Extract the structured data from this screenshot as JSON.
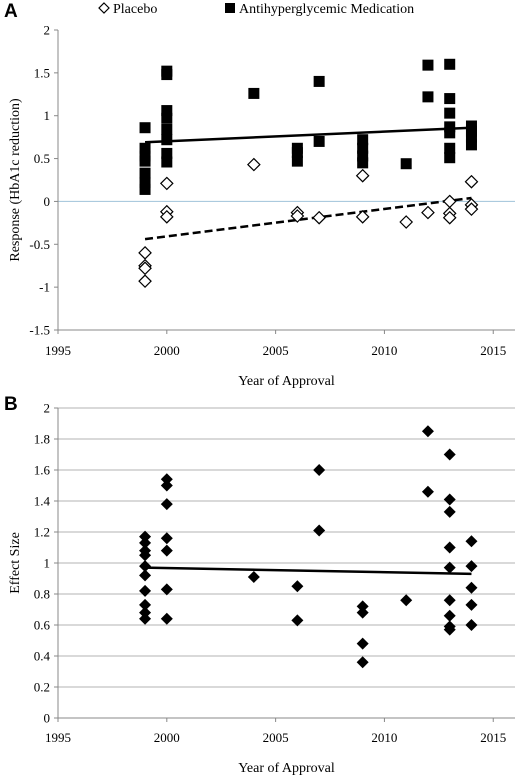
{
  "chart_data": [
    {
      "panel": "A",
      "type": "scatter",
      "xlabel": "Year of Approval",
      "ylabel": "Response (HbA1c reduction)",
      "xlim": [
        1995,
        2016
      ],
      "ylim": [
        -1.5,
        2
      ],
      "xticks": [
        1995,
        2000,
        2005,
        2010,
        2015
      ],
      "yticks": [
        -1.5,
        -1,
        -0.5,
        0,
        0.5,
        1,
        1.5,
        2
      ],
      "grid": "none",
      "legend": "top",
      "colors": {
        "medication": "#000000",
        "placebo": "#000000",
        "zero_line": "#9fc3da"
      },
      "series": [
        {
          "name": "Placebo",
          "marker": "diamond-open",
          "points": [
            [
              1999,
              -0.6
            ],
            [
              1999,
              -0.75
            ],
            [
              1999,
              -0.78
            ],
            [
              1999,
              -0.93
            ],
            [
              2000,
              0.21
            ],
            [
              2000,
              -0.12
            ],
            [
              2000,
              -0.18
            ],
            [
              2004,
              0.43
            ],
            [
              2006,
              -0.13
            ],
            [
              2006,
              -0.17
            ],
            [
              2007,
              -0.19
            ],
            [
              2009,
              0.3
            ],
            [
              2009,
              -0.18
            ],
            [
              2011,
              -0.24
            ],
            [
              2012,
              -0.13
            ],
            [
              2013,
              0.0
            ],
            [
              2013,
              -0.14
            ],
            [
              2013,
              -0.19
            ],
            [
              2014,
              0.23
            ],
            [
              2014,
              -0.04
            ],
            [
              2014,
              -0.09
            ]
          ],
          "trend": {
            "style": "dashed",
            "from": [
              1999,
              -0.44
            ],
            "to": [
              2014,
              0.04
            ]
          }
        },
        {
          "name": "Antihyperglycemic Medication",
          "marker": "square-filled",
          "points": [
            [
              1999,
              0.86
            ],
            [
              1999,
              0.62
            ],
            [
              1999,
              0.53
            ],
            [
              1999,
              0.47
            ],
            [
              1999,
              0.33
            ],
            [
              1999,
              0.22
            ],
            [
              1999,
              0.14
            ],
            [
              2000,
              1.52
            ],
            [
              2000,
              1.48
            ],
            [
              2000,
              1.06
            ],
            [
              2000,
              0.97
            ],
            [
              2000,
              0.84
            ],
            [
              2000,
              0.72
            ],
            [
              2000,
              0.56
            ],
            [
              2000,
              0.46
            ],
            [
              2004,
              1.26
            ],
            [
              2006,
              0.62
            ],
            [
              2006,
              0.57
            ],
            [
              2006,
              0.47
            ],
            [
              2007,
              1.4
            ],
            [
              2007,
              0.7
            ],
            [
              2009,
              0.72
            ],
            [
              2009,
              0.62
            ],
            [
              2009,
              0.53
            ],
            [
              2009,
              0.45
            ],
            [
              2011,
              0.44
            ],
            [
              2012,
              1.59
            ],
            [
              2012,
              1.22
            ],
            [
              2013,
              1.6
            ],
            [
              2013,
              1.2
            ],
            [
              2013,
              1.03
            ],
            [
              2013,
              0.87
            ],
            [
              2013,
              0.8
            ],
            [
              2013,
              0.62
            ],
            [
              2013,
              0.51
            ],
            [
              2014,
              0.88
            ],
            [
              2014,
              0.82
            ],
            [
              2014,
              0.75
            ],
            [
              2014,
              0.66
            ]
          ],
          "trend": {
            "style": "solid",
            "from": [
              1999,
              0.69
            ],
            "to": [
              2014,
              0.86
            ]
          }
        }
      ]
    },
    {
      "panel": "B",
      "type": "scatter",
      "xlabel": "Year of Approval",
      "ylabel": "Effect Size",
      "xlim": [
        1995,
        2016
      ],
      "ylim": [
        0,
        2
      ],
      "xticks": [
        1995,
        2000,
        2005,
        2010,
        2015
      ],
      "yticks": [
        0,
        0.2,
        0.4,
        0.6,
        0.8,
        1,
        1.2,
        1.4,
        1.6,
        1.8,
        2
      ],
      "grid": "horizontal",
      "legend": "none",
      "colors": {
        "points": "#000000",
        "gridline": "#b3b3b3"
      },
      "series": [
        {
          "marker": "diamond-filled",
          "points": [
            [
              1999,
              1.17
            ],
            [
              1999,
              1.13
            ],
            [
              1999,
              1.08
            ],
            [
              1999,
              1.05
            ],
            [
              1999,
              0.98
            ],
            [
              1999,
              0.92
            ],
            [
              1999,
              0.82
            ],
            [
              1999,
              0.73
            ],
            [
              1999,
              0.68
            ],
            [
              1999,
              0.64
            ],
            [
              2000,
              1.54
            ],
            [
              2000,
              1.5
            ],
            [
              2000,
              1.38
            ],
            [
              2000,
              1.16
            ],
            [
              2000,
              1.08
            ],
            [
              2000,
              0.83
            ],
            [
              2000,
              0.64
            ],
            [
              2004,
              0.91
            ],
            [
              2006,
              0.85
            ],
            [
              2006,
              0.63
            ],
            [
              2007,
              1.6
            ],
            [
              2007,
              1.21
            ],
            [
              2009,
              0.72
            ],
            [
              2009,
              0.68
            ],
            [
              2009,
              0.48
            ],
            [
              2009,
              0.36
            ],
            [
              2011,
              0.76
            ],
            [
              2012,
              1.85
            ],
            [
              2012,
              1.46
            ],
            [
              2013,
              1.7
            ],
            [
              2013,
              1.41
            ],
            [
              2013,
              1.33
            ],
            [
              2013,
              1.1
            ],
            [
              2013,
              0.97
            ],
            [
              2013,
              0.76
            ],
            [
              2013,
              0.66
            ],
            [
              2013,
              0.59
            ],
            [
              2013,
              0.57
            ],
            [
              2014,
              1.14
            ],
            [
              2014,
              0.98
            ],
            [
              2014,
              0.84
            ],
            [
              2014,
              0.73
            ],
            [
              2014,
              0.6
            ]
          ],
          "trend": {
            "style": "solid",
            "from": [
              1999,
              0.97
            ],
            "to": [
              2014,
              0.93
            ]
          }
        }
      ]
    }
  ]
}
